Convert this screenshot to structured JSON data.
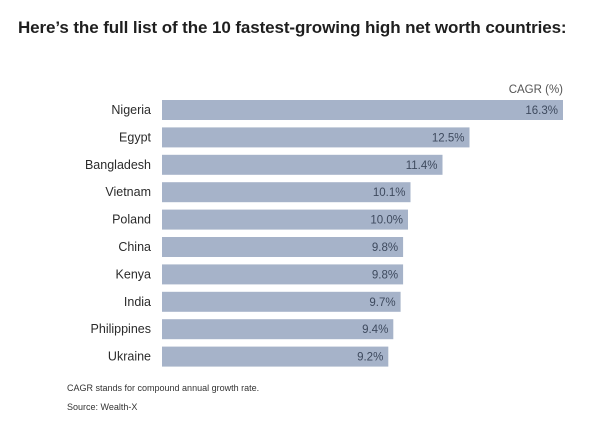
{
  "headline": "Here’s the full list of the 10 fastest-growing high net worth countries:",
  "colors": {
    "bar": "#a6b3c9",
    "value_text": "#3e4a5e",
    "category_text": "#2b2b2b",
    "header_text": "#555555"
  },
  "chart_data": {
    "type": "bar",
    "orientation": "horizontal",
    "title": "",
    "value_header": "CAGR (%)",
    "categories": [
      "Nigeria",
      "Egypt",
      "Bangladesh",
      "Vietnam",
      "Poland",
      "China",
      "Kenya",
      "India",
      "Philippines",
      "Ukraine"
    ],
    "values": [
      16.3,
      12.5,
      11.4,
      10.1,
      10.0,
      9.8,
      9.8,
      9.7,
      9.4,
      9.2
    ],
    "value_labels": [
      "16.3%",
      "12.5%",
      "11.4%",
      "10.1%",
      "10.0%",
      "9.8%",
      "9.8%",
      "9.7%",
      "9.4%",
      "9.2%"
    ],
    "xlim": [
      0,
      16.3
    ],
    "grid": false,
    "legend": "none"
  },
  "notes": {
    "footnote": "CAGR stands for compound annual growth rate.",
    "source": "Source: Wealth-X"
  }
}
